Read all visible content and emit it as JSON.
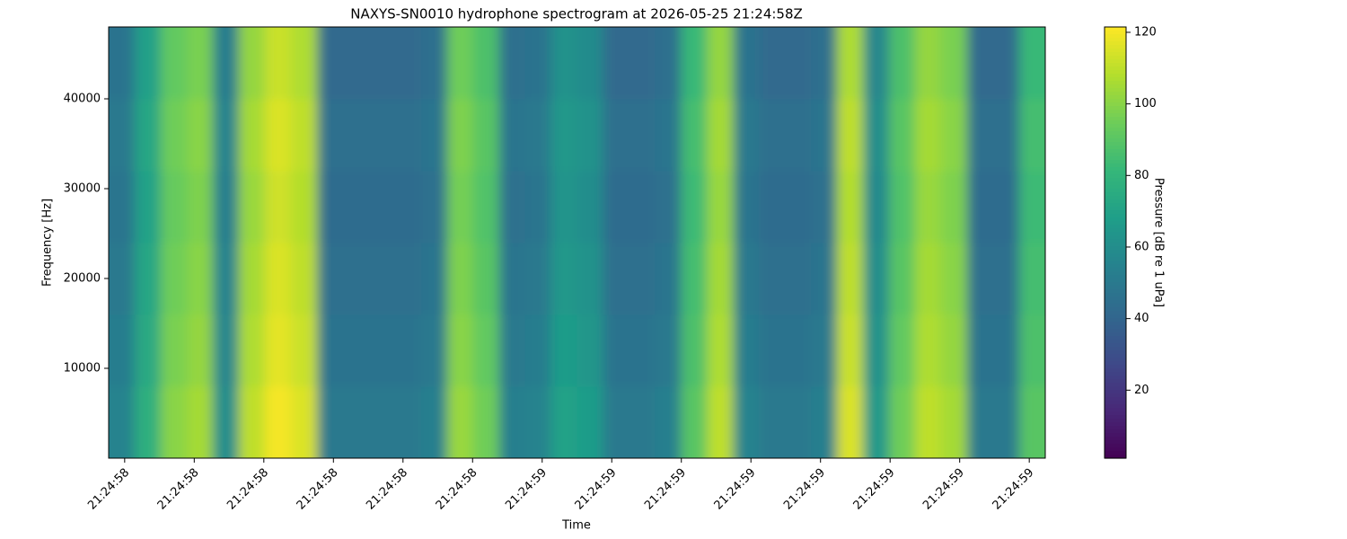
{
  "chart_data": {
    "type": "heatmap",
    "title": "NAXYS-SN0010 hydrophone spectrogram at 2026-05-25 21:24:58Z",
    "xlabel": "Time",
    "ylabel": "Frequency [Hz]",
    "colorbar_label": "Pressure [dB re 1 uPa]",
    "colormap": "viridis",
    "x": [
      58.396,
      58.433,
      58.471,
      58.508,
      58.545,
      58.583,
      58.62,
      58.658,
      58.695,
      58.732,
      58.77,
      58.807,
      58.845,
      58.882,
      58.919,
      58.957,
      58.994,
      59.031,
      59.069,
      59.106,
      59.143,
      59.181,
      59.218,
      59.256,
      59.293,
      59.33,
      59.368,
      59.405,
      59.442,
      59.48,
      59.517,
      59.554,
      59.592,
      59.629,
      59.667,
      59.704
    ],
    "y": [
      4000,
      12000,
      20000,
      28000,
      36000,
      44000
    ],
    "z": [
      [
        55,
        77,
        100,
        105,
        60,
        110,
        120,
        115,
        50,
        50,
        50,
        50,
        53,
        103,
        95,
        53,
        55,
        70,
        67,
        50,
        50,
        53,
        90,
        110,
        55,
        50,
        50,
        53,
        115,
        65,
        95,
        110,
        105,
        50,
        50,
        90
      ],
      [
        52,
        74,
        97,
        102,
        57,
        107,
        117,
        112,
        47,
        47,
        47,
        47,
        50,
        100,
        92,
        50,
        52,
        67,
        64,
        47,
        47,
        50,
        87,
        107,
        52,
        47,
        47,
        50,
        112,
        62,
        92,
        107,
        102,
        47,
        47,
        87
      ],
      [
        50,
        72,
        95,
        100,
        55,
        105,
        115,
        110,
        45,
        45,
        45,
        45,
        48,
        98,
        90,
        48,
        50,
        65,
        62,
        45,
        45,
        48,
        85,
        105,
        50,
        45,
        45,
        48,
        110,
        60,
        90,
        105,
        100,
        45,
        45,
        85
      ],
      [
        48,
        70,
        93,
        98,
        53,
        103,
        113,
        108,
        43,
        43,
        43,
        43,
        46,
        96,
        88,
        46,
        48,
        63,
        60,
        43,
        43,
        46,
        83,
        103,
        48,
        43,
        43,
        46,
        108,
        58,
        88,
        103,
        98,
        43,
        43,
        83
      ],
      [
        50,
        72,
        95,
        100,
        55,
        105,
        115,
        110,
        45,
        45,
        45,
        45,
        48,
        98,
        90,
        48,
        50,
        65,
        62,
        45,
        45,
        48,
        85,
        105,
        50,
        45,
        45,
        48,
        110,
        60,
        90,
        105,
        100,
        45,
        45,
        85
      ],
      [
        47,
        69,
        92,
        97,
        52,
        102,
        112,
        107,
        42,
        42,
        42,
        42,
        45,
        95,
        87,
        45,
        47,
        62,
        59,
        42,
        42,
        45,
        82,
        102,
        47,
        42,
        42,
        45,
        107,
        57,
        87,
        102,
        97,
        42,
        42,
        82
      ]
    ],
    "xlim": [
      58.377,
      59.723
    ],
    "ylim": [
      0,
      48000
    ],
    "clim": [
      1,
      121.5
    ],
    "xticks": [
      {
        "value": 58.4,
        "label": "21:24:58"
      },
      {
        "value": 58.5,
        "label": "21:24:58"
      },
      {
        "value": 58.6,
        "label": "21:24:58"
      },
      {
        "value": 58.7,
        "label": "21:24:58"
      },
      {
        "value": 58.8,
        "label": "21:24:58"
      },
      {
        "value": 58.9,
        "label": "21:24:58"
      },
      {
        "value": 59.0,
        "label": "21:24:59"
      },
      {
        "value": 59.1,
        "label": "21:24:59"
      },
      {
        "value": 59.2,
        "label": "21:24:59"
      },
      {
        "value": 59.3,
        "label": "21:24:59"
      },
      {
        "value": 59.4,
        "label": "21:24:59"
      },
      {
        "value": 59.5,
        "label": "21:24:59"
      },
      {
        "value": 59.6,
        "label": "21:24:59"
      },
      {
        "value": 59.7,
        "label": "21:24:59"
      }
    ],
    "yticks": [
      10000,
      20000,
      30000,
      40000
    ],
    "cticks": [
      20,
      40,
      60,
      80,
      100,
      120
    ]
  }
}
